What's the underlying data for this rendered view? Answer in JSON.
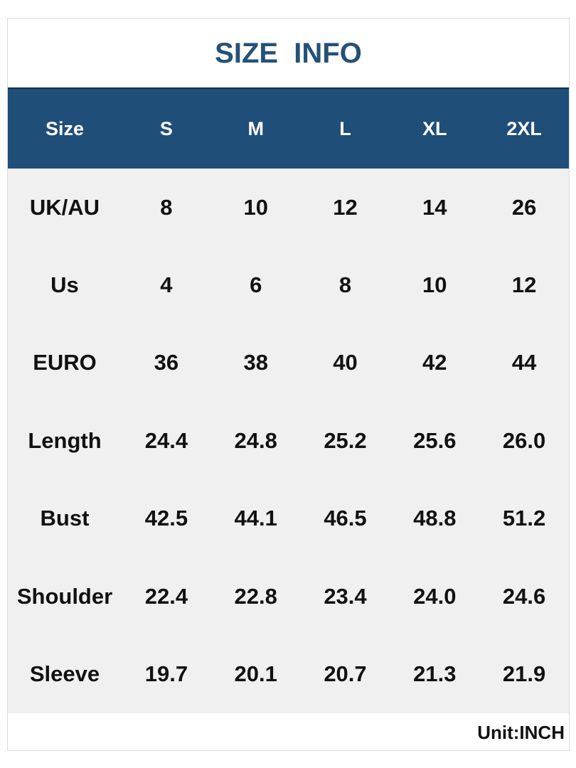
{
  "title": "SIZE  INFO",
  "table": {
    "header": [
      "Size",
      "S",
      "M",
      "L",
      "XL",
      "2XL"
    ],
    "rows": [
      [
        "UK/AU",
        "8",
        "10",
        "12",
        "14",
        "26"
      ],
      [
        "Us",
        "4",
        "6",
        "8",
        "10",
        "12"
      ],
      [
        "EURO",
        "36",
        "38",
        "40",
        "42",
        "44"
      ],
      [
        "Length",
        "24.4",
        "24.8",
        "25.2",
        "25.6",
        "26.0"
      ],
      [
        "Bust",
        "42.5",
        "44.1",
        "46.5",
        "48.8",
        "51.2"
      ],
      [
        "Shoulder",
        "22.4",
        "22.8",
        "23.4",
        "24.0",
        "24.6"
      ],
      [
        "Sleeve",
        "19.7",
        "20.1",
        "20.7",
        "21.3",
        "21.9"
      ]
    ]
  },
  "footer": "Unit:INCH"
}
